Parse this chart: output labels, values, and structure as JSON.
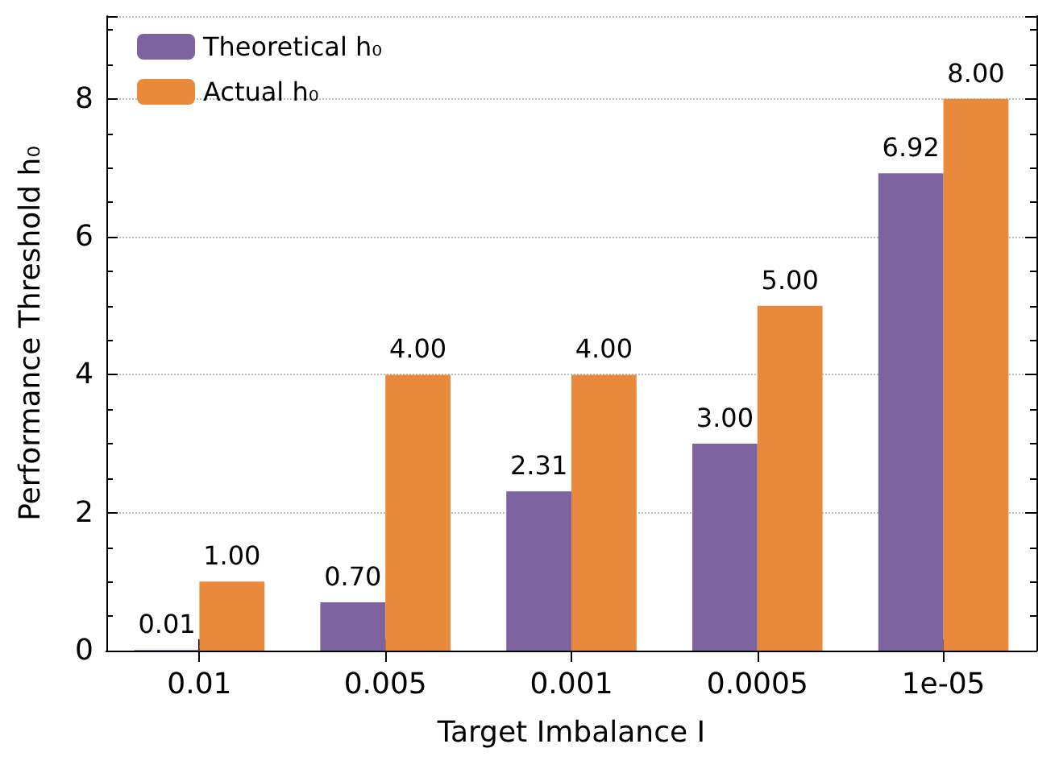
{
  "chart_data": {
    "type": "bar",
    "xlabel": "Target Imbalance I",
    "ylabel": "Performance Threshold h₀",
    "categories": [
      "0.01",
      "0.005",
      "0.001",
      "0.0005",
      "1e-05"
    ],
    "series": [
      {
        "name": "Theoretical h₀",
        "color": "#7d64a0",
        "values": [
          0.01,
          0.7,
          2.31,
          3.0,
          6.92
        ],
        "value_labels": [
          "0.01",
          "0.70",
          "2.31",
          "3.00",
          "6.92"
        ]
      },
      {
        "name": "Actual h₀",
        "color": "#e8893c",
        "values": [
          1.0,
          4.0,
          4.0,
          5.0,
          8.0
        ],
        "value_labels": [
          "1.00",
          "4.00",
          "4.00",
          "5.00",
          "8.00"
        ]
      }
    ],
    "ylim": [
      0,
      9.2
    ],
    "yticks": [
      0,
      2,
      4,
      6,
      8
    ],
    "grid": "y",
    "legend": "top left"
  }
}
